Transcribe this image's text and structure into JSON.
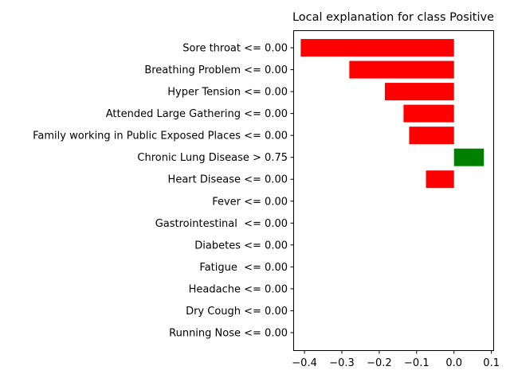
{
  "chart_data": {
    "type": "bar",
    "orientation": "horizontal",
    "title": "Local explanation for class Positive",
    "xlabel": "",
    "ylabel": "",
    "categories": [
      "Sore throat <= 0.00",
      "Breathing Problem <= 0.00",
      "Hyper Tension <= 0.00",
      "Attended Large Gathering <= 0.00",
      "Family working in Public Exposed Places <= 0.00",
      "Chronic Lung Disease > 0.75",
      "Heart Disease <= 0.00",
      "Fever <= 0.00",
      "Gastrointestinal  <= 0.00",
      "Diabetes <= 0.00",
      "Fatigue  <= 0.00",
      "Headache <= 0.00",
      "Dry Cough <= 0.00",
      "Running Nose <= 0.00"
    ],
    "values": [
      -0.41,
      -0.28,
      -0.185,
      -0.135,
      -0.12,
      0.08,
      -0.075,
      0,
      0,
      0,
      0,
      0,
      0,
      0
    ],
    "xlim": [
      -0.43,
      0.105
    ],
    "xticks": [
      -0.4,
      -0.3,
      -0.2,
      -0.1,
      0.0,
      0.1
    ],
    "xtick_labels": [
      "−0.4",
      "−0.3",
      "−0.2",
      "−0.1",
      "0.0",
      "0.1"
    ],
    "colors": {
      "negative": "#ff0000",
      "positive": "#008000"
    },
    "grid": false,
    "legend": null
  }
}
